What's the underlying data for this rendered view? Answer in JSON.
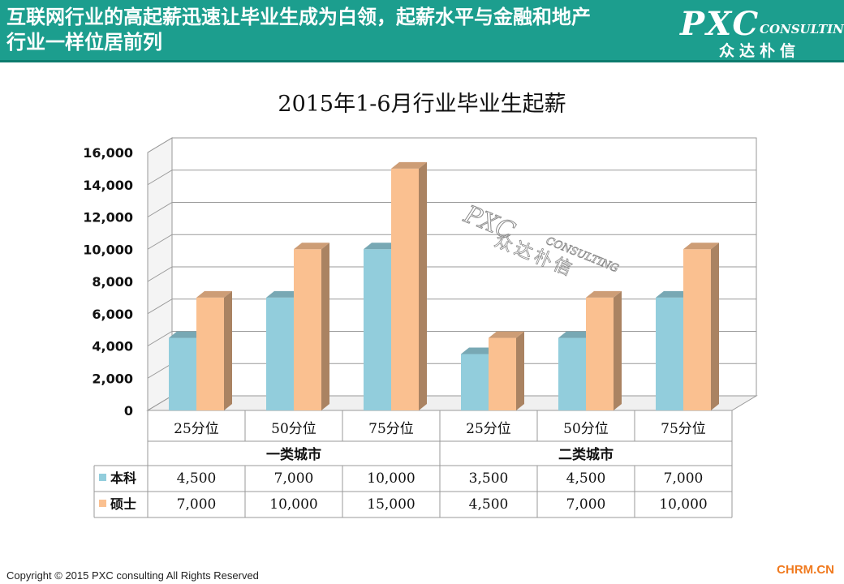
{
  "header": {
    "title_line1": "互联网行业的高起薪迅速让毕业生成为白领，起薪水平与金融和地产",
    "title_line2": "行业一样位居前列",
    "logo_pxc": "PXC",
    "logo_consulting": "CONSULTING",
    "logo_cn": "众达朴信"
  },
  "watermark": {
    "pxc": "PXC",
    "consulting": "CONSULTING",
    "cn": "众达朴信"
  },
  "chart_data": {
    "type": "bar",
    "title": "2015年1-6月行业毕业生起薪",
    "categories": [
      "25分位",
      "50分位",
      "75分位",
      "25分位",
      "50分位",
      "75分位"
    ],
    "groups": [
      {
        "label": "一类城市",
        "span": 3
      },
      {
        "label": "二类城市",
        "span": 3
      }
    ],
    "series": [
      {
        "name": "本科",
        "values": [
          4500,
          7000,
          10000,
          3500,
          4500,
          7000
        ],
        "color": "#92cddc"
      },
      {
        "name": "硕士",
        "values": [
          7000,
          10000,
          15000,
          4500,
          7000,
          10000
        ],
        "color": "#fac090"
      }
    ],
    "table_labels": [
      [
        "4,500",
        "7,000",
        "10,000",
        "3,500",
        "4,500",
        "7,000"
      ],
      [
        "7,000",
        "10,000",
        "15,000",
        "4,500",
        "7,000",
        "10,000"
      ]
    ],
    "ylim": [
      0,
      16000
    ],
    "yticks": [
      0,
      2000,
      4000,
      6000,
      8000,
      10000,
      12000,
      14000,
      16000
    ],
    "ytick_labels": [
      "0",
      "2,000",
      "4,000",
      "6,000",
      "8,000",
      "10,000",
      "12,000",
      "14,000",
      "16,000"
    ],
    "grid": true,
    "legend": "data-table"
  },
  "footer": {
    "copyright": "Copyright © 2015  PXC consulting All Rights Reserved",
    "brand": "CHRM.CN"
  }
}
